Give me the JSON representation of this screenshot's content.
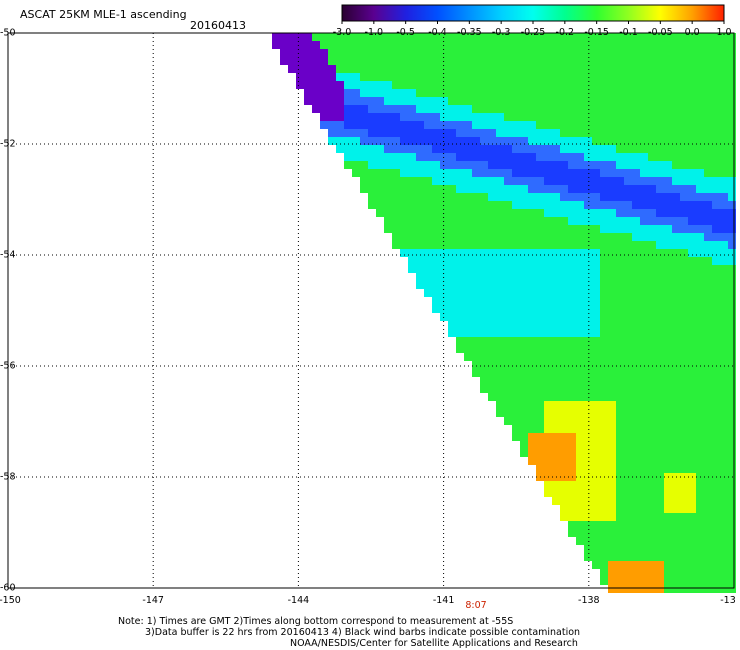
{
  "header": {
    "title": "ASCAT 25KM MLE-1 ascending",
    "date": "20160413"
  },
  "colorbar": {
    "labels": [
      "-3.0",
      "-1.0",
      "-0.5",
      "-0.4",
      "-0.35",
      "-0.3",
      "-0.25",
      "-0.2",
      "-0.15",
      "-0.1",
      "-0.05",
      "0.0",
      "1.0"
    ],
    "colors": [
      "#2a0030",
      "#5a0090",
      "#2020e0",
      "#0050ff",
      "#0090ff",
      "#00d0ff",
      "#00ffee",
      "#00ff90",
      "#30ff30",
      "#90ff20",
      "#ffff00",
      "#ffa000",
      "#ff2000"
    ]
  },
  "map": {
    "lat_labels": [
      "-50",
      "-52",
      "-54",
      "-56",
      "-58",
      "-60"
    ],
    "lon_labels": [
      "-150",
      "-147",
      "-144",
      "-141",
      "-138",
      "-13"
    ],
    "time_label": "8:07",
    "palette": {
      "deep_purple": "#6a00c8",
      "dark_blue": "#1a3cff",
      "blue": "#2f6bff",
      "cyan": "#00f2ea",
      "green": "#2af03a",
      "yellow": "#e6ff00",
      "orange": "#ff9d00"
    }
  },
  "footer": {
    "note1": "Note: 1) Times are GMT 2)Times along bottom correspond to measurement at -55S",
    "note2": "3)Data buffer is 22 hrs from 20160413 4) Black wind barbs indicate possible contamination",
    "note3": "NOAA/NESDIS/Center for Satellite Applications and Research"
  }
}
